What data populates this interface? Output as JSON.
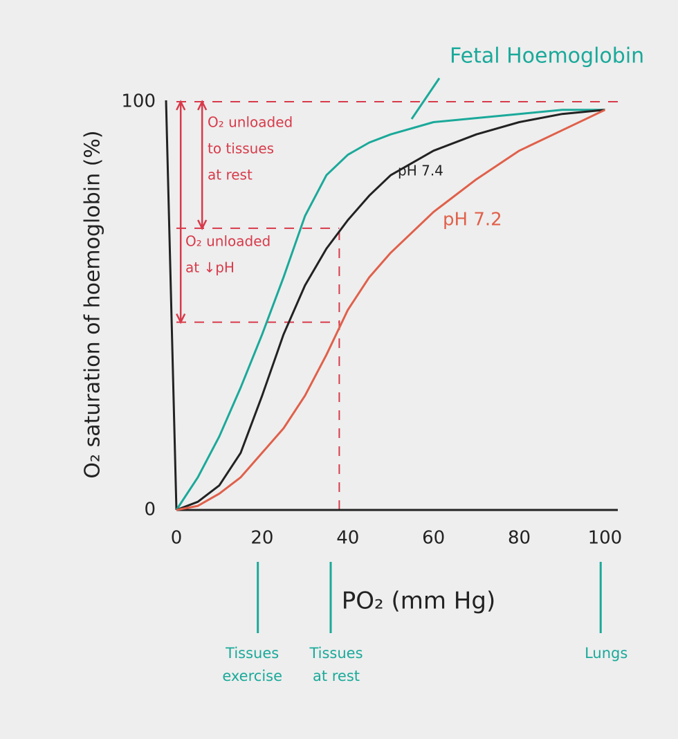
{
  "chart_data": {
    "type": "line",
    "y_label": "O₂ saturation of hoemoglobin (%)",
    "x_label": "PO₂ (mm Hg)",
    "xlim": [
      0,
      103
    ],
    "ylim": [
      0,
      100
    ],
    "xticks": [
      0,
      20,
      40,
      60,
      80,
      100
    ],
    "yticks": [
      0,
      100
    ],
    "x": [
      0,
      5,
      10,
      15,
      20,
      25,
      30,
      35,
      40,
      45,
      50,
      60,
      70,
      80,
      90,
      100
    ],
    "series": [
      {
        "name": "Fetal Hoemoglobin",
        "color": "#1aa99a",
        "values": [
          0,
          8,
          18,
          30,
          43,
          57,
          72,
          82,
          87,
          90,
          92,
          95,
          96,
          97,
          98,
          98
        ]
      },
      {
        "name": "pH 7.4",
        "color": "#222222",
        "values": [
          0,
          2,
          6,
          14,
          28,
          43,
          55,
          64,
          71,
          77,
          82,
          88,
          92,
          95,
          97,
          98
        ]
      },
      {
        "name": "pH 7.2",
        "color": "#e0604a",
        "values": [
          0,
          1,
          4,
          8,
          14,
          20,
          28,
          38,
          49,
          57,
          63,
          73,
          81,
          88,
          93,
          98
        ]
      }
    ],
    "reference_lines": [
      {
        "y": 100,
        "x_end": 103
      },
      {
        "y": 69,
        "x_end": 38
      },
      {
        "y": 46,
        "x_end": 38
      }
    ],
    "reference_vline": {
      "x": 38,
      "y_end": 69
    },
    "arrows": [
      {
        "x": 6,
        "from": 100,
        "to": 69,
        "label": [
          "O₂ unloaded",
          "to tissues",
          "at rest"
        ]
      },
      {
        "x": 1,
        "from": 100,
        "to": 46,
        "label": [
          "O₂ unloaded",
          "at ↓pH"
        ]
      }
    ],
    "markers": [
      {
        "x": 19,
        "label": [
          "Tissues",
          "exercise"
        ]
      },
      {
        "x": 36,
        "label": [
          "Tissues",
          "at rest"
        ]
      },
      {
        "x": 99,
        "label": [
          "Lungs"
        ]
      }
    ]
  }
}
